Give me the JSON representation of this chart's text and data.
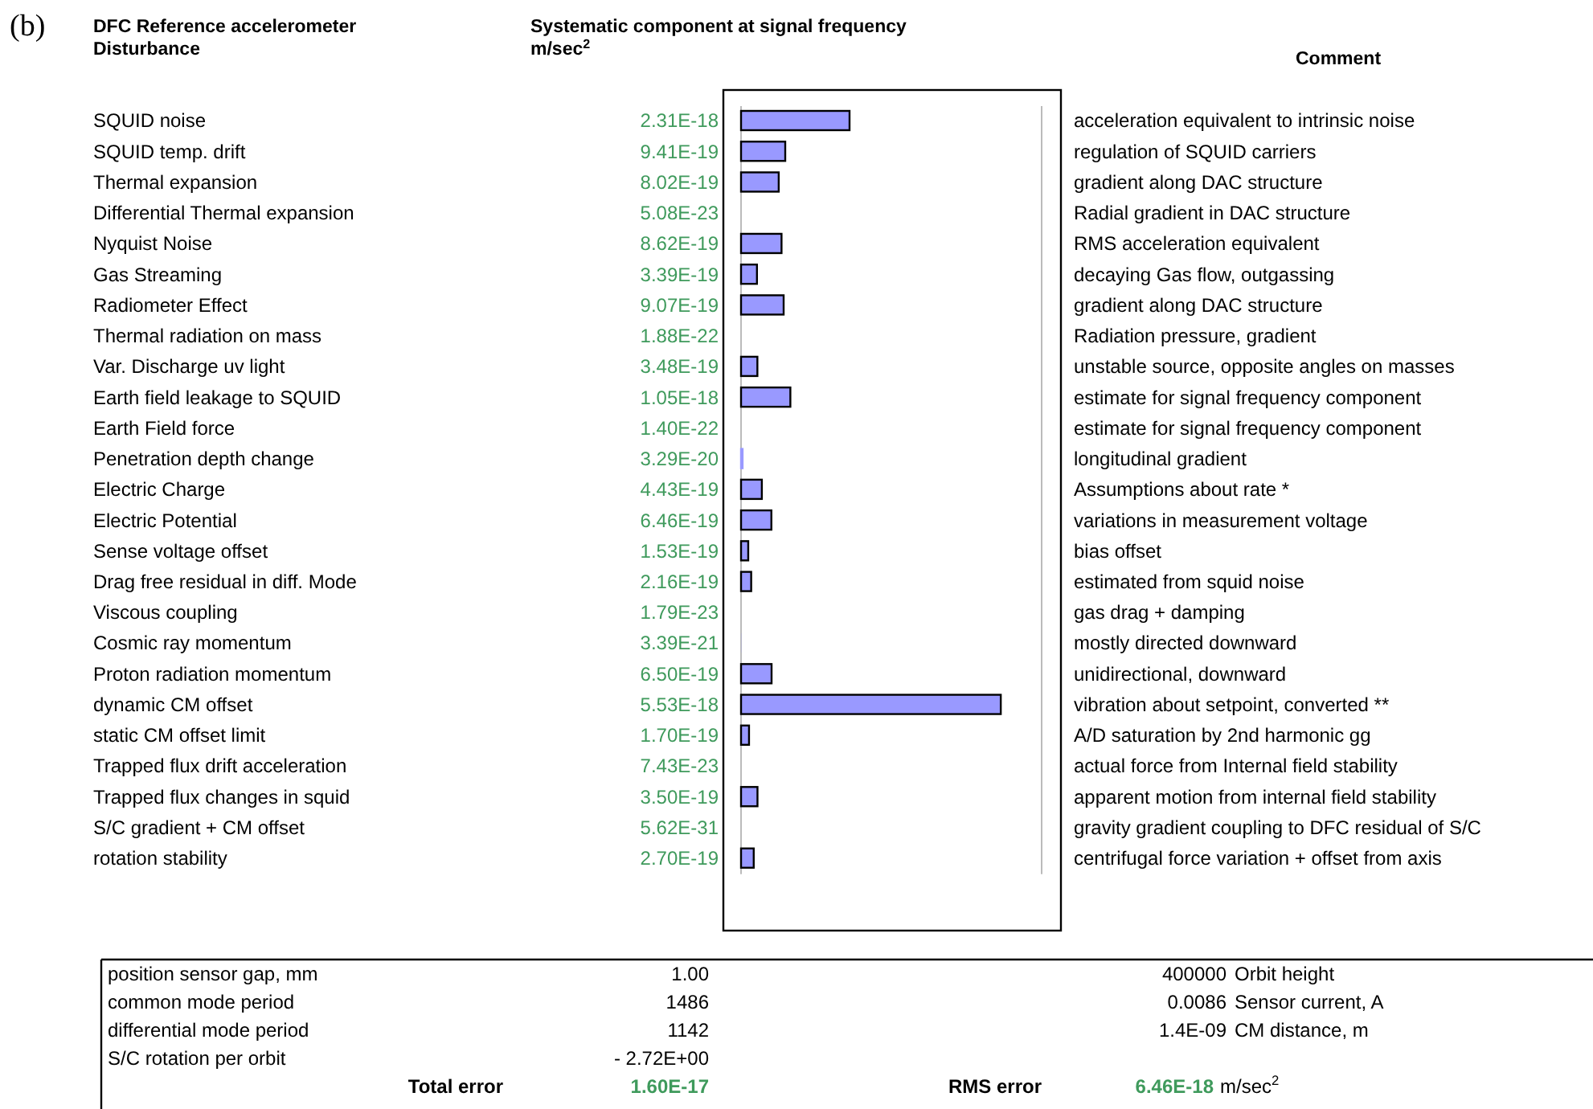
{
  "chart_data": {
    "type": "bar",
    "orientation": "horizontal",
    "title": "(b)",
    "ylabel": "DFC Reference accelerometer Disturbance",
    "xlabel": "Systematic component at signal frequency m/sec$^{2}$",
    "categories": [
      "SQUID noise",
      "SQUID temp. drift",
      "Thermal  expansion",
      "Differential Thermal  expansion",
      "Nyquist Noise",
      "Gas Streaming",
      "Radiometer Effect",
      "Thermal radiation on mass",
      "Var. Discharge uv light",
      "Earth field leakage to SQUID",
      "Earth Field force",
      "Penetration depth change",
      "Electric Charge",
      "Electric Potential",
      "Sense voltage offset",
      "Drag free residual in diff. Mode",
      "Viscous coupling",
      "Cosmic ray momentum",
      "Proton radiation momentum",
      "dynamic CM offset",
      "static CM offset limit",
      "Trapped flux drift acceleration",
      "Trapped flux changes in squid",
      "S/C gradient + CM offset",
      "rotation stability"
    ],
    "values": [
      2.31e-18,
      9.41e-19,
      8.02e-19,
      5.08e-23,
      8.62e-19,
      3.39e-19,
      9.07e-19,
      1.88e-22,
      3.48e-19,
      1.05e-18,
      1.4e-22,
      3.29e-20,
      4.43e-19,
      6.46e-19,
      1.53e-19,
      2.16e-19,
      1.79e-23,
      3.39e-21,
      6.5e-19,
      5.53e-18,
      1.7e-19,
      7.43e-23,
      3.5e-19,
      5.62e-31,
      2.7e-19
    ],
    "value_labels": [
      "2.31E-18",
      "9.41E-19",
      "8.02E-19",
      "5.08E-23",
      "8.62E-19",
      "3.39E-19",
      "9.07E-19",
      "1.88E-22",
      "3.48E-19",
      "1.05E-18",
      "1.40E-22",
      "3.29E-20",
      "4.43E-19",
      "6.46E-19",
      "1.53E-19",
      "2.16E-19",
      "1.79E-23",
      "3.39E-21",
      "6.50E-19",
      "5.53E-18",
      "1.70E-19",
      "7.43E-23",
      "3.50E-19",
      "5.62E-31",
      "2.70E-19"
    ],
    "color": "#9999ff",
    "xlim": [
      0,
      6.4e-18
    ],
    "annotations": [
      "Comment",
      "acceleration equivalent to intrinsic noise",
      "regulation of SQUID carriers",
      "gradient along DAC structure",
      "Radial gradient  in DAC structure",
      "RMS acceleration equivalent",
      "decaying Gas flow, outgassing",
      "gradient along DAC structure",
      "Radiation pressure, gradient",
      "unstable source, opposite angles on masses",
      "estimate for signal frequency component",
      "estimate for signal frequency component",
      "longitudinal gradient",
      "Assumptions about rate *",
      "variations in measurement voltage",
      "bias offset",
      "estimated from squid noise",
      "gas drag + damping",
      "mostly directed downward",
      "unidirectional, downward",
      "vibration about setpoint, converted **",
      "A/D saturation by 2nd harmonic gg",
      "actual force from Internal field stability",
      "apparent motion from internal field stability",
      "gravity gradient coupling to DFC residual of S/C",
      "centrifugal force variation + offset from axis",
      "position sensor gap, mm",
      "1.00",
      "400000",
      "Orbit height",
      "common mode period",
      "1486",
      "0.0086",
      "Sensor current, A",
      "differential mode period",
      "1142",
      "1.4E-09",
      "CM distance, m",
      "S/C rotation per orbit",
      "- 2.72E+00",
      "Total error",
      "1.60E-17",
      "RMS error",
      "6.46E-18",
      "m/sec$^{2}$"
    ]
  }
}
